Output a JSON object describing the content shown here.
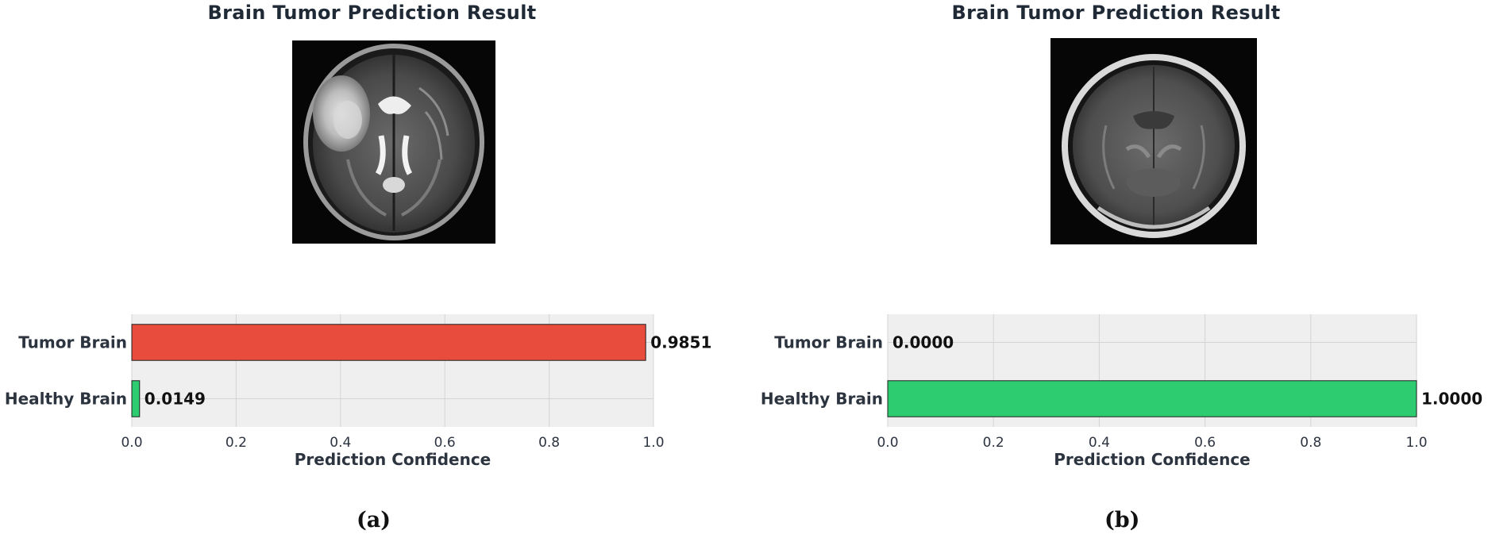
{
  "panels": [
    {
      "title": "Brain Tumor Prediction Result",
      "image_icon": "mri-axial-tumor",
      "caption": "(a)"
    },
    {
      "title": "Brain Tumor Prediction Result",
      "image_icon": "mri-axial-healthy",
      "caption": "(b)"
    }
  ],
  "colors": {
    "tumor": "#e74c3c",
    "healthy": "#2ecc71",
    "plot_bg": "#efefef",
    "grid": "#d4d4d4",
    "text": "#2c3440"
  },
  "chart_data": [
    {
      "type": "bar",
      "orientation": "horizontal",
      "categories": [
        "Tumor Brain",
        "Healthy Brain"
      ],
      "values": [
        0.9851,
        0.0149
      ],
      "value_labels": [
        "0.9851",
        "0.0149"
      ],
      "xlabel": "Prediction Confidence",
      "xlim": [
        0,
        1
      ],
      "xticks": [
        "0.0",
        "0.2",
        "0.4",
        "0.6",
        "0.8",
        "1.0"
      ],
      "grid": true
    },
    {
      "type": "bar",
      "orientation": "horizontal",
      "categories": [
        "Tumor Brain",
        "Healthy Brain"
      ],
      "values": [
        0.0,
        1.0
      ],
      "value_labels": [
        "0.0000",
        "1.0000"
      ],
      "xlabel": "Prediction Confidence",
      "xlim": [
        0,
        1
      ],
      "xticks": [
        "0.0",
        "0.2",
        "0.4",
        "0.6",
        "0.8",
        "1.0"
      ],
      "grid": true
    }
  ]
}
